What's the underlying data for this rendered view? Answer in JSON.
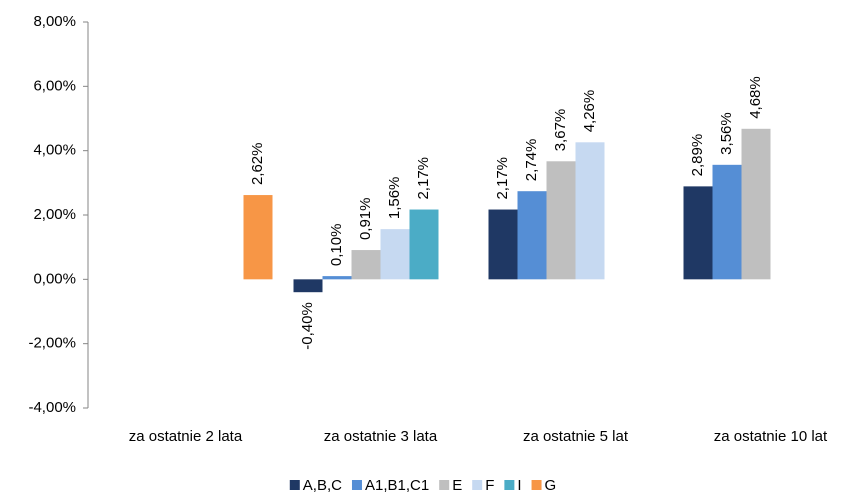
{
  "chart_data": {
    "type": "bar",
    "categories": [
      "za ostatnie 2 lata",
      "za ostatnie 3 lata",
      "za ostatnie 5 lat",
      "za ostatnie 10 lat"
    ],
    "series": [
      {
        "name": "A,B,C",
        "color": "#1f3864",
        "values": [
          null,
          -0.4,
          2.17,
          2.89
        ],
        "value_labels": [
          null,
          "-0,40%",
          "2,17%",
          "2,89%"
        ]
      },
      {
        "name": "A1,B1,C1",
        "color": "#558ed5",
        "values": [
          null,
          0.1,
          2.74,
          3.56
        ],
        "value_labels": [
          null,
          "0,10%",
          "2,74%",
          "3,56%"
        ]
      },
      {
        "name": "E",
        "color": "#bfbfbf",
        "values": [
          null,
          0.91,
          3.67,
          4.68
        ],
        "value_labels": [
          null,
          "0,91%",
          "3,67%",
          "4,68%"
        ]
      },
      {
        "name": "F",
        "color": "#c6d9f1",
        "values": [
          null,
          1.56,
          4.26,
          null
        ],
        "value_labels": [
          null,
          "1,56%",
          "4,26%",
          null
        ]
      },
      {
        "name": "I",
        "color": "#4bacc6",
        "values": [
          null,
          2.17,
          null,
          null
        ],
        "value_labels": [
          null,
          "2,17%",
          null,
          null
        ]
      },
      {
        "name": "G",
        "color": "#f79646",
        "values": [
          2.62,
          null,
          null,
          null
        ],
        "value_labels": [
          "2,62%",
          null,
          null,
          null
        ]
      }
    ],
    "ylim": [
      -4,
      8
    ],
    "yticks": [
      {
        "value": -4,
        "label": "-4,00%"
      },
      {
        "value": -2,
        "label": "-2,00%"
      },
      {
        "value": 0,
        "label": "0,00%"
      },
      {
        "value": 2,
        "label": "2,00%"
      },
      {
        "value": 4,
        "label": "4,00%"
      },
      {
        "value": 6,
        "label": "6,00%"
      },
      {
        "value": 8,
        "label": "8,00%"
      }
    ],
    "grid": false,
    "legend": "bottom"
  }
}
